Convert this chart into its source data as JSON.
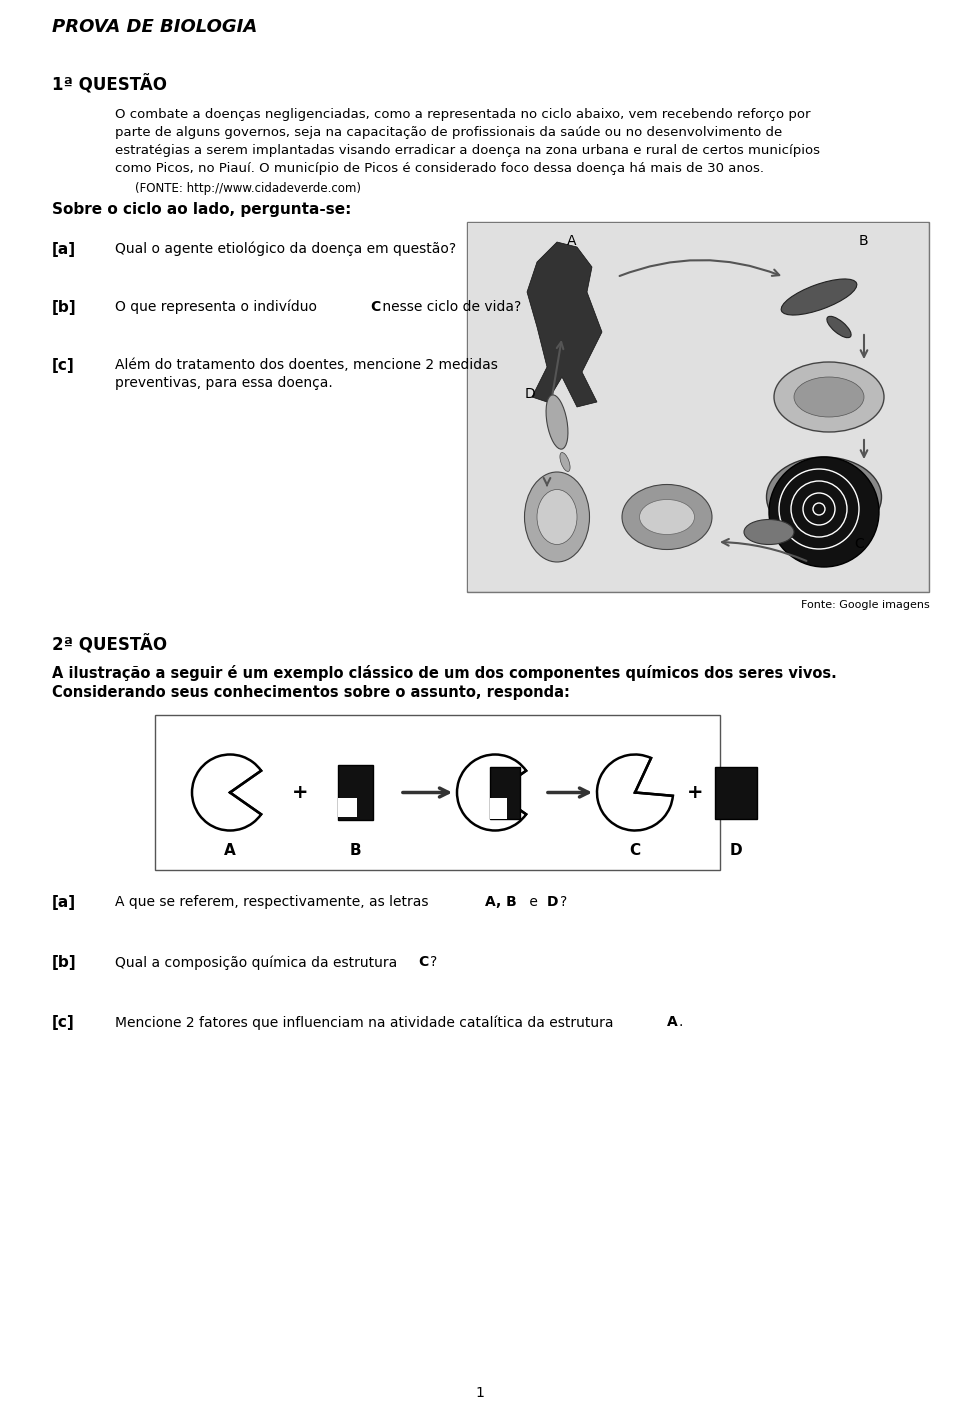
{
  "title": "PROVA DE BIOLOGIA",
  "q1_label": "1ª QUESTÃO",
  "q1_fonte": "(FONTE: http://www.cidadeverde.com)",
  "q1_subtitulo": "Sobre o ciclo ao lado, pergunta-se:",
  "fonte_img": "Fonte: Google imagens",
  "q2_label": "2ª QUESTÃO",
  "q2_text1": "A ilustração a seguir é um exemplo clássico de um dos componentes químicos dos seres vivos.",
  "q2_text2": "Considerando seus conhecimentos sobre o assunto, responda:",
  "page_num": "1",
  "bg_color": "#ffffff",
  "text_color": "#000000"
}
